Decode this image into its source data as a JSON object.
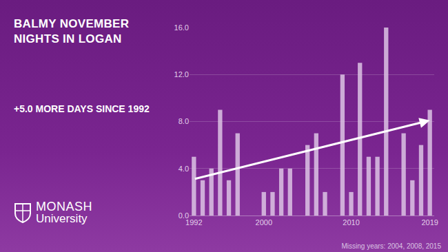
{
  "chart_data": {
    "type": "bar",
    "title": "BALMY NOVEMBER NIGHTS IN LOGAN",
    "subtitle": "+5.0 MORE DAYS SINCE 1992",
    "x": [
      1992,
      1993,
      1994,
      1995,
      1996,
      1997,
      1998,
      1999,
      2000,
      2001,
      2002,
      2003,
      2004,
      2005,
      2006,
      2007,
      2008,
      2009,
      2010,
      2011,
      2012,
      2013,
      2014,
      2015,
      2016,
      2017,
      2018,
      2019
    ],
    "values": [
      5,
      3,
      4,
      9,
      3,
      7,
      0,
      0,
      2,
      2,
      4,
      4,
      null,
      6,
      7,
      2,
      null,
      12,
      2,
      13,
      5,
      5,
      16,
      null,
      7,
      3,
      6,
      9
    ],
    "color": "#dcc3e4",
    "xlim": [
      1991.5,
      2019.5
    ],
    "xticks": [
      1992,
      2000,
      2010,
      2019
    ],
    "ylim": [
      0,
      16
    ],
    "yticks": [
      {
        "value": 0,
        "label": "0.0"
      },
      {
        "value": 4,
        "label": "4.0"
      },
      {
        "value": 8,
        "label": "8.0"
      },
      {
        "value": 12,
        "label": "12.0"
      },
      {
        "value": 16,
        "label": "16.0"
      }
    ],
    "grid": true,
    "trend": {
      "x": [
        1992,
        2019
      ],
      "values": [
        3.1,
        8.1
      ]
    },
    "note": "Missing years: 2004, 2008, 2015",
    "brand": [
      "MONASH",
      "University"
    ]
  }
}
